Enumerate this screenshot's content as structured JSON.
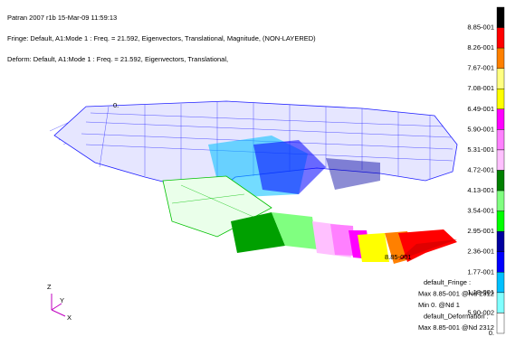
{
  "header": {
    "lines": [
      "Patran 2007 r1b 15-Mar-09 11:59:13",
      "Fringe: Default, A1:Mode 1 : Freq. = 21.592, Eigenvectors, Translational, Magnitude, (NON-LAYERED)",
      "Deform: Default, A1:Mode 1 : Freq. = 21.592, Eigenvectors, Translational,"
    ]
  },
  "legend": {
    "items": [
      {
        "label": "8.85-001",
        "color": "#000000"
      },
      {
        "label": "8.26-001",
        "color": "#ff0000"
      },
      {
        "label": "7.67-001",
        "color": "#ff8000"
      },
      {
        "label": "7.08-001",
        "color": "#ffff80"
      },
      {
        "label": "6.49-001",
        "color": "#ffff00"
      },
      {
        "label": "5.90-001",
        "color": "#ff00ff"
      },
      {
        "label": "5.31-001",
        "color": "#ff80ff"
      },
      {
        "label": "4.72-001",
        "color": "#ffc0ff"
      },
      {
        "label": "4.13-001",
        "color": "#008000"
      },
      {
        "label": "3.54-001",
        "color": "#80ff80"
      },
      {
        "label": "2.95-001",
        "color": "#00ff00"
      },
      {
        "label": "2.36-001",
        "color": "#0000a0"
      },
      {
        "label": "1.77-001",
        "color": "#0000ff"
      },
      {
        "label": "1.18-001",
        "color": "#00c0ff"
      },
      {
        "label": "5.90-002",
        "color": "#80ffff"
      },
      {
        "label": "0.",
        "color": "#ffffff"
      }
    ]
  },
  "model": {
    "min_label": "0.",
    "max_label": "8.85-001"
  },
  "axes": {
    "z": "Z",
    "y": "Y",
    "x": "X"
  },
  "info": {
    "lines": [
      "default_Fringe :",
      "Max 8.85-001 @Nd 2312",
      "Min 0. @Nd 1",
      "default_Deformation :",
      "Max 8.85-001 @Nd 2312"
    ]
  }
}
